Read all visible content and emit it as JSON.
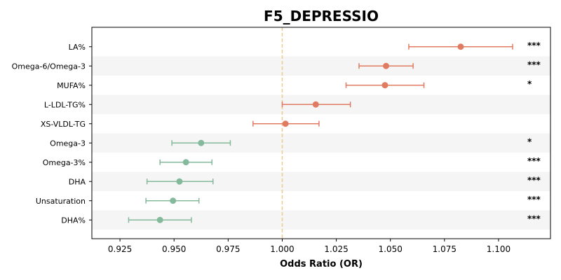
{
  "chart_data": {
    "type": "forest",
    "title": "F5_DEPRESSIO",
    "xlabel": "Odds Ratio (OR)",
    "xlim": [
      0.912,
      1.124
    ],
    "xticks": [
      0.925,
      0.95,
      0.975,
      1.0,
      1.025,
      1.05,
      1.075,
      1.1
    ],
    "xtick_labels": [
      "0.925",
      "0.950",
      "0.975",
      "1.000",
      "1.025",
      "1.050",
      "1.075",
      "1.100"
    ],
    "reference_line": 1.0,
    "banded_rows": true,
    "rows": [
      {
        "label": "LA%",
        "or": 1.0825,
        "lo": 1.0585,
        "hi": 1.1065,
        "sig": "***",
        "direction": "positive"
      },
      {
        "label": "Omega-6/Omega-3",
        "or": 1.048,
        "lo": 1.0355,
        "hi": 1.0605,
        "sig": "***",
        "direction": "positive"
      },
      {
        "label": "MUFA%",
        "or": 1.0475,
        "lo": 1.0295,
        "hi": 1.0655,
        "sig": "*",
        "direction": "positive"
      },
      {
        "label": "L-LDL-TG%",
        "or": 1.0155,
        "lo": 1.0,
        "hi": 1.0315,
        "sig": "",
        "direction": "positive"
      },
      {
        "label": "XS-VLDL-TG",
        "or": 1.0015,
        "lo": 0.9865,
        "hi": 1.017,
        "sig": "",
        "direction": "positive"
      },
      {
        "label": "Omega-3",
        "or": 0.9625,
        "lo": 0.949,
        "hi": 0.976,
        "sig": "*",
        "direction": "negative"
      },
      {
        "label": "Omega-3%",
        "or": 0.9555,
        "lo": 0.9435,
        "hi": 0.9675,
        "sig": "***",
        "direction": "negative"
      },
      {
        "label": "DHA",
        "or": 0.9525,
        "lo": 0.9375,
        "hi": 0.968,
        "sig": "***",
        "direction": "negative"
      },
      {
        "label": "Unsaturation",
        "or": 0.9495,
        "lo": 0.937,
        "hi": 0.9615,
        "sig": "***",
        "direction": "negative"
      },
      {
        "label": "DHA%",
        "or": 0.9435,
        "lo": 0.929,
        "hi": 0.958,
        "sig": "***",
        "direction": "negative"
      }
    ],
    "colors": {
      "positive": "#e07b61",
      "negative": "#84b99c",
      "reference": "#f2c98a",
      "band": "#f5f5f5",
      "axis": "#000000"
    }
  }
}
